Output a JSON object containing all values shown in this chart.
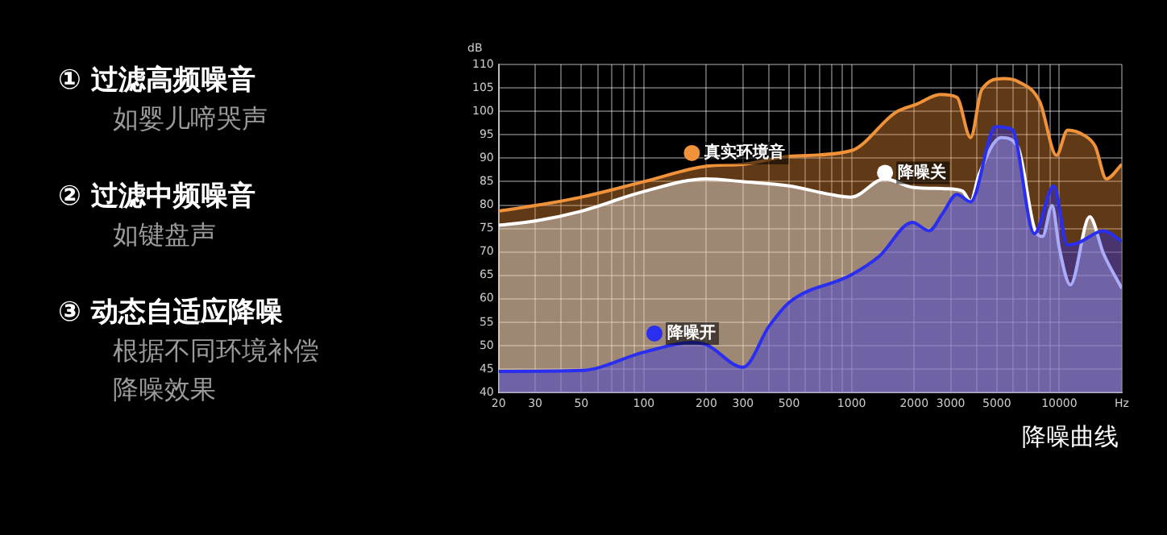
{
  "chart_data": {
    "type": "area",
    "title": "降噪曲线",
    "ylabel": "dB",
    "annotations": [
      "① 过滤高频噪音",
      "如婴儿啼哭声",
      "② 过滤中频噪音",
      "如键盘声",
      "③ 动态自适应降噪",
      "根据不同环境补偿降噪效果"
    ],
    "series": [
      {
        "name": "真实环境音",
        "color": "#f0923a",
        "x": [
          20,
          30,
          50,
          100,
          200,
          300,
          500,
          994,
          1633,
          2075,
          2670,
          3210,
          3740,
          4230,
          5410,
          6300,
          8060,
          9690,
          10960,
          13150,
          14900,
          16840,
          20000
        ],
        "values": [
          78.7,
          79.9,
          81.7,
          85,
          88.3,
          88.7,
          90.4,
          91.6,
          99.8,
          101.6,
          103.6,
          103,
          94.4,
          104.6,
          107,
          106.4,
          102,
          90.6,
          96,
          94.9,
          92.5,
          85.6,
          88.7
        ]
      },
      {
        "name": "降噪关",
        "color": "#ffffff",
        "x": [
          20,
          30,
          50,
          100,
          200,
          300,
          500,
          782,
          994,
          1445,
          1964,
          2840,
          3420,
          3740,
          4100,
          5240,
          6300,
          7580,
          8300,
          9230,
          10000,
          11300,
          14000,
          16300,
          20000
        ],
        "values": [
          75.7,
          76.6,
          78.7,
          82.9,
          85.6,
          85,
          84.1,
          82.3,
          81.7,
          85.6,
          83.8,
          83.5,
          83,
          80.8,
          86.4,
          94.4,
          92.5,
          75.1,
          73.3,
          79.9,
          70.8,
          63,
          77.5,
          69.7,
          62.2
        ]
      },
      {
        "name": "降噪开",
        "color": "#2a2ef0",
        "x": [
          20,
          50,
          100,
          170,
          200,
          300,
          400,
          500,
          994,
          1360,
          1964,
          2360,
          2750,
          3210,
          3740,
          4930,
          5930,
          7580,
          9400,
          10960,
          12390,
          16300,
          20000
        ],
        "values": [
          44.5,
          44.7,
          48.6,
          50.7,
          50.2,
          45.4,
          54.1,
          59.2,
          65.1,
          69.1,
          76.3,
          74.5,
          78.3,
          82.3,
          80.7,
          96.7,
          96.1,
          73.9,
          84.1,
          71.5,
          72,
          74.5,
          72.3
        ]
      }
    ],
    "log": "x",
    "xlim": [
      20,
      20000
    ],
    "xticks": [
      20,
      30,
      {
        "value": 40,
        "label": null
      },
      50,
      {
        "value": 60,
        "label": null
      },
      {
        "value": 70,
        "label": null
      },
      {
        "value": 80,
        "label": null
      },
      {
        "value": 90,
        "label": null
      },
      100,
      200,
      300,
      {
        "value": 400,
        "label": null
      },
      500,
      {
        "value": 600,
        "label": null
      },
      {
        "value": 700,
        "label": null
      },
      {
        "value": 800,
        "label": null
      },
      {
        "value": 900,
        "label": null
      },
      1000,
      2000,
      3000,
      {
        "value": 4000,
        "label": null
      },
      5000,
      {
        "value": 6000,
        "label": null
      },
      {
        "value": 7000,
        "label": null
      },
      {
        "value": 8000,
        "label": null
      },
      {
        "value": 9000,
        "label": null
      },
      10000,
      {
        "value": 20000,
        "label": "Hz"
      }
    ],
    "ylim": [
      40,
      110
    ],
    "yticks": [
      40,
      45,
      50,
      55,
      60,
      65,
      70,
      75,
      80,
      85,
      90,
      95,
      100,
      105,
      110
    ],
    "grid": true,
    "legend": "left"
  }
}
